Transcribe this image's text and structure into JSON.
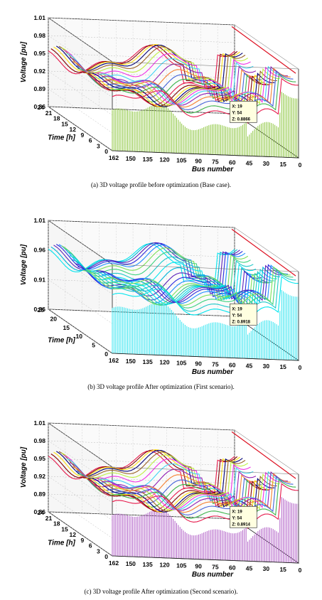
{
  "figure": {
    "panels": [
      {
        "caption": "(a)  3D voltage profile before optimization (Base case).",
        "zlabel": "Voltage [pu]",
        "ylabel": "Time [h]",
        "xlabel": "Bus number",
        "zticks": [
          "1.01",
          "0.98",
          "0.95",
          "0.92",
          "0.89",
          "0.86"
        ],
        "yticks": [
          "24",
          "21",
          "18",
          "15",
          "12",
          "9",
          "6",
          "3",
          "0"
        ],
        "xticks": [
          "162",
          "150",
          "135",
          "120",
          "105",
          "90",
          "75",
          "60",
          "45",
          "30",
          "15",
          "0"
        ],
        "datatip": {
          "x": "X: 19",
          "y": "Y: 54",
          "z": "Z: 0.8866"
        },
        "bar_color": "#8cc63e",
        "palette": [
          "#e6194b",
          "#3cb44b",
          "#4363d8",
          "#f58231",
          "#911eb4",
          "#42d4f4",
          "#f032e6",
          "#bfef45",
          "#9a6324",
          "#000075",
          "#ffe119",
          "#800000"
        ]
      },
      {
        "caption": "(b)  3D voltage profile After optimization (First scenario).",
        "zlabel": "Voltage [pu]",
        "ylabel": "Time [h]",
        "xlabel": "Bus number",
        "zticks": [
          "1.01",
          "0.96",
          "0.91",
          "0.86"
        ],
        "yticks": [
          "25",
          "20",
          "15",
          "10",
          "5",
          "0"
        ],
        "xticks": [
          "162",
          "150",
          "135",
          "120",
          "105",
          "90",
          "75",
          "60",
          "45",
          "30",
          "15",
          "0"
        ],
        "datatip": {
          "x": "X: 19",
          "y": "Y: 54",
          "z": "Z: 0.8918"
        },
        "bar_color": "#33e5f0",
        "palette": [
          "#00e5ee",
          "#1fc8c8",
          "#3fd37f",
          "#7be05a",
          "#1e90ff",
          "#2a2adf",
          "#5a1fb8",
          "#00b4d8"
        ]
      },
      {
        "caption": "(c)  3D voltage profile After optimization (Second scenario).",
        "zlabel": "Voltage [pu]",
        "ylabel": "Time [h]",
        "xlabel": "Bus number",
        "zticks": [
          "1.01",
          "0.98",
          "0.95",
          "0.92",
          "0.89",
          "0.86"
        ],
        "yticks": [
          "24",
          "21",
          "18",
          "15",
          "12",
          "9",
          "6",
          "3",
          "0"
        ],
        "xticks": [
          "162",
          "150",
          "135",
          "120",
          "105",
          "90",
          "75",
          "60",
          "45",
          "30",
          "15",
          "0"
        ],
        "datatip": {
          "x": "X: 19",
          "y": "Y: 54",
          "z": "Z: 0.8914"
        },
        "bar_color": "#b15fc7",
        "palette": [
          "#e6194b",
          "#3cb44b",
          "#4363d8",
          "#f58231",
          "#911eb4",
          "#42d4f4",
          "#f032e6",
          "#bfef45",
          "#9a6324",
          "#000075",
          "#ffe119",
          "#800000"
        ]
      }
    ]
  },
  "chart_data": [
    {
      "type": "surface3d",
      "title": "",
      "xlabel": "Bus number",
      "ylabel": "Time [h]",
      "zlabel": "Voltage [pu]",
      "xlim": [
        0,
        162
      ],
      "ylim": [
        0,
        24
      ],
      "zlim": [
        0.86,
        1.01
      ],
      "datatip": {
        "x": 19,
        "y": 54,
        "z": 0.8866
      }
    },
    {
      "type": "surface3d",
      "title": "",
      "xlabel": "Bus number",
      "ylabel": "Time [h]",
      "zlabel": "Voltage [pu]",
      "xlim": [
        0,
        162
      ],
      "ylim": [
        0,
        25
      ],
      "zlim": [
        0.86,
        1.01
      ],
      "datatip": {
        "x": 19,
        "y": 54,
        "z": 0.8918
      }
    },
    {
      "type": "surface3d",
      "title": "",
      "xlabel": "Bus number",
      "ylabel": "Time [h]",
      "zlabel": "Voltage [pu]",
      "xlim": [
        0,
        162
      ],
      "ylim": [
        0,
        24
      ],
      "zlim": [
        0.86,
        1.01
      ],
      "datatip": {
        "x": 19,
        "y": 54,
        "z": 0.8914
      }
    }
  ]
}
